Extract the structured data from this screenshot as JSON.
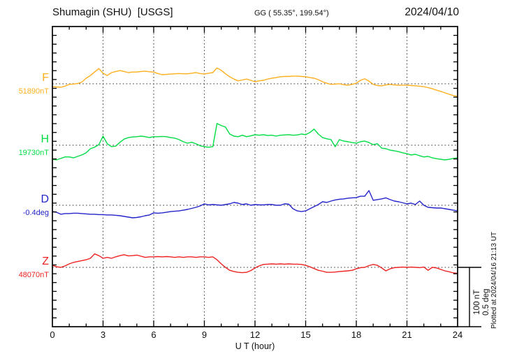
{
  "header": {
    "station_title": "Shumagin (SHU)  [USGS]",
    "geo_coords": "GG ( 55.35°, 199.54°)",
    "date": "2024/04/10"
  },
  "footer": {
    "xaxis_label": "U T (hour)"
  },
  "right_margin": {
    "scale_caption_line1": "100 nT",
    "scale_caption_line2": "0.5 deg",
    "plotted_at": "Plotted at 2024/04/16 21:13 UT"
  },
  "chart_data": {
    "type": "line",
    "title": "Shumagin (SHU) [USGS] magnetogram 2024/04/10",
    "xlabel": "U T (hour)",
    "x_range_hours": [
      0,
      24
    ],
    "x_ticks": [
      0,
      3,
      6,
      9,
      12,
      15,
      18,
      21,
      24
    ],
    "x_minor_tick_hours": 1,
    "grid": "dotted vertical lines every 3 h; dotted horizontal baseline per trace",
    "sample_step_hours": 0.25,
    "scale_bar": {
      "nT": 100,
      "deg": 0.5
    },
    "series": [
      {
        "id": "F",
        "label": "F",
        "baseline_label": "51890nT",
        "baseline_value": 51890,
        "unit": "nT",
        "color": "#ffaf1e",
        "offsets": [
          -5,
          -5.5,
          -6,
          -4,
          -1,
          -0.5,
          0.5,
          3,
          9.5,
          14,
          20,
          26,
          18,
          14,
          19,
          21,
          22.5,
          21,
          19,
          20,
          20,
          21,
          21.5,
          20.5,
          20,
          17.5,
          15.5,
          16,
          16.5,
          17,
          17.5,
          17,
          17,
          18,
          19,
          17.5,
          16.5,
          18,
          19,
          27,
          23,
          17,
          12,
          8,
          5,
          6.5,
          8,
          6,
          3.5,
          5,
          6,
          8,
          9.5,
          10.5,
          12,
          12.5,
          12.5,
          13,
          13,
          12.5,
          12,
          10.5,
          9.5,
          7,
          3.5,
          1,
          -1,
          -0.5,
          0,
          -1.5,
          -2.5,
          -1,
          1,
          6,
          8.5,
          4.5,
          -1,
          -3,
          -3.5,
          -2,
          -1,
          -2,
          -2.5,
          -2.5,
          -2.5,
          -3,
          -3.5,
          -4,
          -5,
          -6.5,
          -8.5,
          -11,
          -13,
          -15.5,
          -18,
          -20,
          -21.5
        ]
      },
      {
        "id": "H",
        "label": "H",
        "baseline_label": "19730nT",
        "baseline_value": 19730,
        "unit": "nT",
        "color": "#00dd44",
        "offsets": [
          -24,
          -25,
          -22.5,
          -20,
          -20,
          -21.5,
          -19,
          -16.5,
          -13,
          -6,
          -3.5,
          1,
          15.5,
          2.5,
          -2.5,
          -1.5,
          5,
          10.5,
          13,
          14,
          14.5,
          15.5,
          14.5,
          13,
          14.5,
          14.5,
          15,
          14.5,
          13,
          12,
          9.5,
          6,
          3.5,
          5,
          2.5,
          -1,
          -2.5,
          -3.5,
          -2.5,
          37,
          33.5,
          31,
          19,
          15.5,
          14.5,
          17,
          14.5,
          16,
          18,
          17,
          18,
          16.5,
          17,
          15.5,
          17,
          17.5,
          18,
          17,
          17.5,
          19,
          18,
          21.5,
          27.5,
          19,
          13,
          11,
          9.5,
          -2.5,
          9.5,
          7,
          6,
          4.5,
          3.5,
          6,
          7,
          4.5,
          1,
          2.5,
          -5,
          -6,
          -8.5,
          -9.5,
          -11,
          -13,
          -14.5,
          -16.5,
          -15.5,
          -18,
          -20,
          -19,
          -21.5,
          -23,
          -24,
          -25,
          -24,
          -22.5,
          -21.5
        ]
      },
      {
        "id": "D",
        "label": "D",
        "baseline_label": "-0.4deg",
        "baseline_value": -0.4,
        "unit": "deg",
        "color": "#2424cc",
        "offsets": [
          -0.054,
          -0.06,
          -0.077,
          -0.071,
          -0.071,
          -0.068,
          -0.068,
          -0.071,
          -0.074,
          -0.077,
          -0.077,
          -0.08,
          -0.08,
          -0.083,
          -0.083,
          -0.086,
          -0.089,
          -0.095,
          -0.101,
          -0.107,
          -0.104,
          -0.098,
          -0.089,
          -0.083,
          -0.065,
          -0.068,
          -0.065,
          -0.06,
          -0.054,
          -0.051,
          -0.048,
          -0.042,
          -0.036,
          -0.027,
          -0.018,
          -0.006,
          0.012,
          0.003,
          0.006,
          0.003,
          0,
          0.006,
          0.012,
          0.024,
          0.018,
          0.006,
          0.012,
          0,
          0.006,
          0.003,
          0.003,
          0.006,
          0.006,
          0,
          0,
          0.012,
          0.009,
          -0.03,
          -0.048,
          -0.054,
          -0.048,
          -0.03,
          -0.012,
          0.006,
          0.03,
          0.024,
          0.036,
          0.045,
          0.051,
          0.054,
          0.06,
          0.063,
          0.065,
          0.077,
          0.077,
          0.125,
          0.042,
          0.048,
          0.054,
          0.063,
          0.048,
          0.036,
          0.03,
          0.021,
          0.012,
          0.018,
          0.006,
          0.036,
          0,
          -0.018,
          -0.021,
          -0.024,
          -0.024,
          -0.03,
          -0.036,
          -0.042,
          -0.048
        ]
      },
      {
        "id": "Z",
        "label": "Z",
        "baseline_label": "48070nT",
        "baseline_value": 48070,
        "unit": "nT",
        "color": "#ee2222",
        "offsets": [
          3.5,
          1,
          0,
          2.5,
          6,
          8.5,
          10,
          11.5,
          13,
          15.5,
          23,
          20,
          15.5,
          17,
          15.5,
          18,
          20,
          21.5,
          19.5,
          20,
          21,
          19,
          17,
          18,
          18,
          18.5,
          18,
          18.5,
          18,
          17,
          18,
          17,
          18,
          18,
          17,
          18,
          18,
          17,
          18,
          13,
          6,
          0,
          -5,
          -7,
          -8.5,
          -9,
          -8.5,
          -5.5,
          -1,
          2.5,
          5,
          5.5,
          6,
          5.5,
          6,
          5.5,
          6,
          5.5,
          5.5,
          5,
          3.5,
          1,
          -2,
          -5,
          -6.5,
          -8.5,
          -8.5,
          -8,
          -7,
          -6.5,
          -6,
          -5,
          -2.5,
          -0.5,
          0,
          3,
          5,
          3.5,
          -1,
          -6,
          -2.5,
          -0.5,
          0,
          0.5,
          0,
          0.5,
          0,
          -0.5,
          0.5,
          -5,
          0,
          -1,
          -3.5,
          -6,
          -7.5,
          -9.5,
          -10
        ]
      }
    ]
  }
}
